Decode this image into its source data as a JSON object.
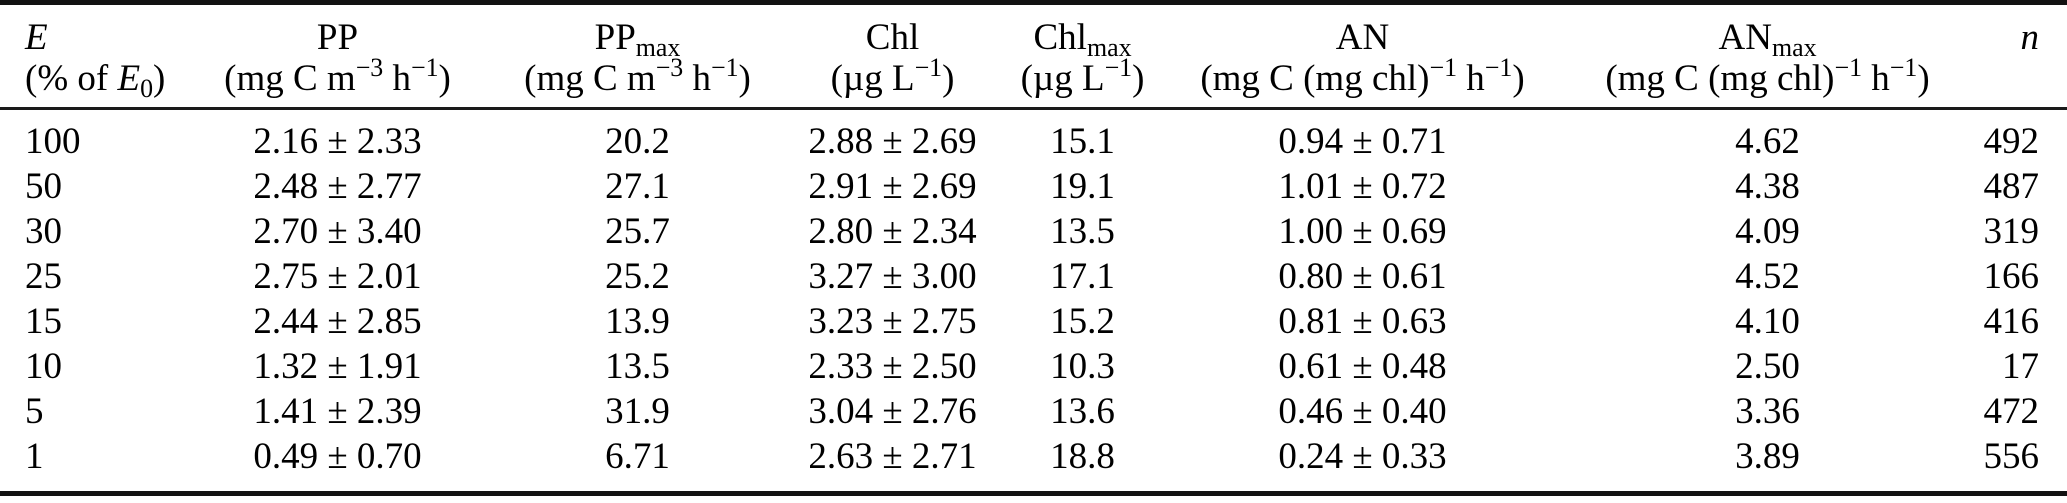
{
  "table": {
    "columns": [
      {
        "id": "e",
        "label": "*E*",
        "unit": "(% of *E*_{0})",
        "align": "l"
      },
      {
        "id": "pp",
        "label": "PP",
        "unit": "(mg C m^{−3} h^{−1})",
        "align": "c"
      },
      {
        "id": "ppmax",
        "label": "PP_{max}",
        "unit": "(mg C m^{−3} h^{−1})",
        "align": "c"
      },
      {
        "id": "chl",
        "label": "Chl",
        "unit": "(µg L^{−1})",
        "align": "c"
      },
      {
        "id": "chlmax",
        "label": "Chl_{max}",
        "unit": "(µg L^{−1})",
        "align": "c"
      },
      {
        "id": "an",
        "label": "AN",
        "unit": "(mg C (mg chl)^{−1} h^{−1})",
        "align": "c"
      },
      {
        "id": "anmax",
        "label": "AN_{max}",
        "unit": "(mg C (mg chl)^{−1} h^{−1})",
        "align": "c"
      },
      {
        "id": "n",
        "label": "*n*",
        "unit": "",
        "align": "r"
      }
    ],
    "rows": [
      [
        "100",
        "2.16 ± 2.33",
        "20.2",
        "2.88 ± 2.69",
        "15.1",
        "0.94 ± 0.71",
        "4.62",
        "492"
      ],
      [
        "50",
        "2.48 ± 2.77",
        "27.1",
        "2.91 ± 2.69",
        "19.1",
        "1.01 ± 0.72",
        "4.38",
        "487"
      ],
      [
        "30",
        "2.70 ± 3.40",
        "25.7",
        "2.80 ± 2.34",
        "13.5",
        "1.00 ± 0.69",
        "4.09",
        "319"
      ],
      [
        "25",
        "2.75 ± 2.01",
        "25.2",
        "3.27 ± 3.00",
        "17.1",
        "0.80 ± 0.61",
        "4.52",
        "166"
      ],
      [
        "15",
        "2.44 ± 2.85",
        "13.9",
        "3.23 ± 2.75",
        "15.2",
        "0.81 ± 0.63",
        "4.10",
        "416"
      ],
      [
        "10",
        "1.32 ± 1.91",
        "13.5",
        "2.33 ± 2.50",
        "10.3",
        "0.61 ± 0.48",
        "2.50",
        "17"
      ],
      [
        "5",
        "1.41 ± 2.39",
        "31.9",
        "3.04 ± 2.76",
        "13.6",
        "0.46 ± 0.40",
        "3.36",
        "472"
      ],
      [
        "1",
        "0.49 ± 0.70",
        "6.71",
        "2.63 ± 2.71",
        "18.8",
        "0.24 ± 0.33",
        "3.89",
        "556"
      ]
    ]
  }
}
